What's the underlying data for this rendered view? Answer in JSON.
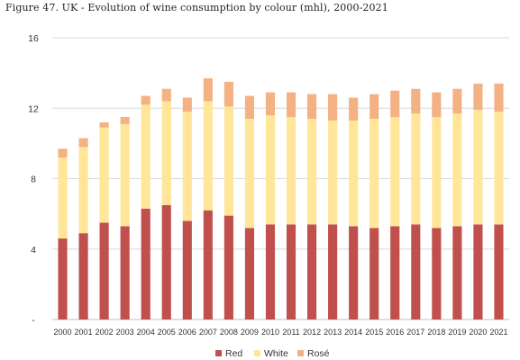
{
  "figure_title": "Figure 47. UK - Evolution of wine consumption by colour (mhl), 2000-2021",
  "chart_data": {
    "type": "bar",
    "stacked": true,
    "categories": [
      "2000",
      "2001",
      "2002",
      "2003",
      "2004",
      "2005",
      "2006",
      "2007",
      "2008",
      "2009",
      "2010",
      "2011",
      "2012",
      "2013",
      "2014",
      "2015",
      "2016",
      "2017",
      "2018",
      "2019",
      "2020",
      "2021"
    ],
    "series": [
      {
        "name": "Red",
        "color": "#c0504d",
        "values": [
          4.6,
          4.9,
          5.5,
          5.3,
          6.3,
          6.5,
          5.6,
          6.2,
          5.9,
          5.2,
          5.4,
          5.4,
          5.4,
          5.4,
          5.3,
          5.2,
          5.3,
          5.4,
          5.2,
          5.3,
          5.4,
          5.4
        ]
      },
      {
        "name": "White",
        "color": "#ffe699",
        "values": [
          4.6,
          4.9,
          5.4,
          5.8,
          5.9,
          5.9,
          6.2,
          6.2,
          6.2,
          6.2,
          6.2,
          6.1,
          6.0,
          5.9,
          6.0,
          6.2,
          6.2,
          6.3,
          6.3,
          6.4,
          6.5,
          6.4
        ]
      },
      {
        "name": "Rosé",
        "color": "#f4b183",
        "values": [
          0.5,
          0.5,
          0.3,
          0.4,
          0.5,
          0.7,
          0.8,
          1.3,
          1.4,
          1.3,
          1.3,
          1.4,
          1.4,
          1.5,
          1.3,
          1.4,
          1.5,
          1.4,
          1.4,
          1.4,
          1.5,
          1.6
        ]
      }
    ],
    "y_ticks": [
      "-",
      "4",
      "8",
      "12",
      "16"
    ],
    "ylim": [
      0,
      16
    ],
    "grid": true,
    "legend": "bottom-center"
  }
}
